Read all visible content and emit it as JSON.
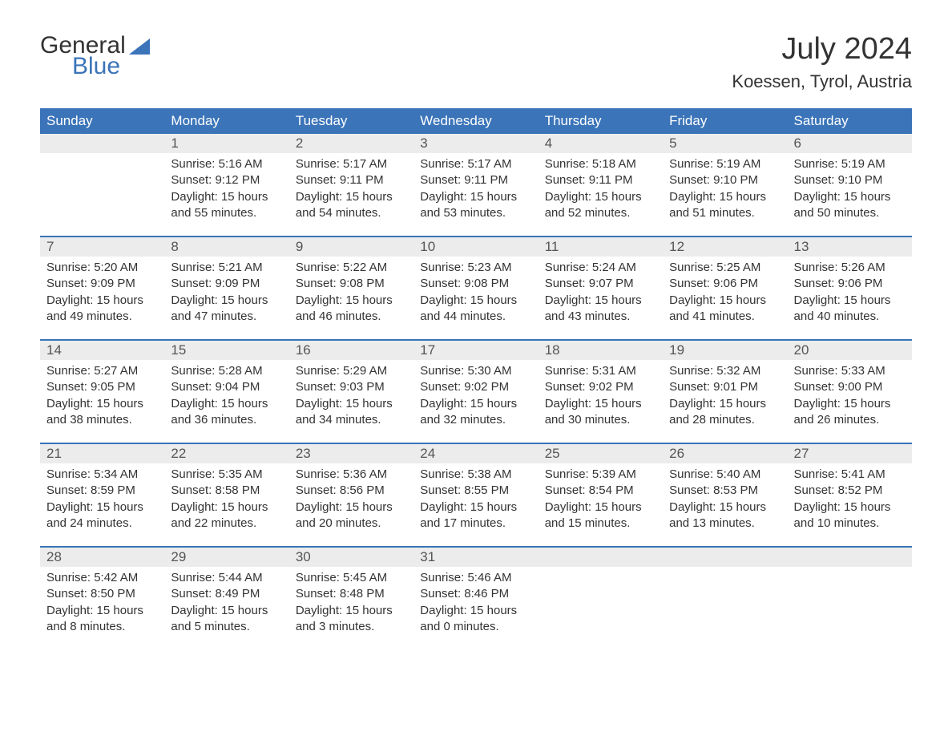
{
  "logo": {
    "text_general": "General",
    "text_blue": "Blue",
    "triangle_color": "#3b74b9"
  },
  "header": {
    "title": "July 2024",
    "subtitle": "Koessen, Tyrol, Austria"
  },
  "colors": {
    "header_bg": "#3b74b9",
    "header_text": "#ffffff",
    "daynum_bg": "#ececec",
    "text": "#333333",
    "week_border": "#3b74b9",
    "background": "#ffffff"
  },
  "fonts": {
    "family": "Arial, Helvetica, sans-serif",
    "title_size": 38,
    "subtitle_size": 22,
    "day_header_size": 17,
    "daynum_size": 17,
    "body_size": 15
  },
  "calendar": {
    "day_headers": [
      "Sunday",
      "Monday",
      "Tuesday",
      "Wednesday",
      "Thursday",
      "Friday",
      "Saturday"
    ],
    "weeks": [
      [
        {
          "num": "",
          "sunrise": "",
          "sunset": "",
          "daylight": ""
        },
        {
          "num": "1",
          "sunrise": "Sunrise: 5:16 AM",
          "sunset": "Sunset: 9:12 PM",
          "daylight": "Daylight: 15 hours and 55 minutes."
        },
        {
          "num": "2",
          "sunrise": "Sunrise: 5:17 AM",
          "sunset": "Sunset: 9:11 PM",
          "daylight": "Daylight: 15 hours and 54 minutes."
        },
        {
          "num": "3",
          "sunrise": "Sunrise: 5:17 AM",
          "sunset": "Sunset: 9:11 PM",
          "daylight": "Daylight: 15 hours and 53 minutes."
        },
        {
          "num": "4",
          "sunrise": "Sunrise: 5:18 AM",
          "sunset": "Sunset: 9:11 PM",
          "daylight": "Daylight: 15 hours and 52 minutes."
        },
        {
          "num": "5",
          "sunrise": "Sunrise: 5:19 AM",
          "sunset": "Sunset: 9:10 PM",
          "daylight": "Daylight: 15 hours and 51 minutes."
        },
        {
          "num": "6",
          "sunrise": "Sunrise: 5:19 AM",
          "sunset": "Sunset: 9:10 PM",
          "daylight": "Daylight: 15 hours and 50 minutes."
        }
      ],
      [
        {
          "num": "7",
          "sunrise": "Sunrise: 5:20 AM",
          "sunset": "Sunset: 9:09 PM",
          "daylight": "Daylight: 15 hours and 49 minutes."
        },
        {
          "num": "8",
          "sunrise": "Sunrise: 5:21 AM",
          "sunset": "Sunset: 9:09 PM",
          "daylight": "Daylight: 15 hours and 47 minutes."
        },
        {
          "num": "9",
          "sunrise": "Sunrise: 5:22 AM",
          "sunset": "Sunset: 9:08 PM",
          "daylight": "Daylight: 15 hours and 46 minutes."
        },
        {
          "num": "10",
          "sunrise": "Sunrise: 5:23 AM",
          "sunset": "Sunset: 9:08 PM",
          "daylight": "Daylight: 15 hours and 44 minutes."
        },
        {
          "num": "11",
          "sunrise": "Sunrise: 5:24 AM",
          "sunset": "Sunset: 9:07 PM",
          "daylight": "Daylight: 15 hours and 43 minutes."
        },
        {
          "num": "12",
          "sunrise": "Sunrise: 5:25 AM",
          "sunset": "Sunset: 9:06 PM",
          "daylight": "Daylight: 15 hours and 41 minutes."
        },
        {
          "num": "13",
          "sunrise": "Sunrise: 5:26 AM",
          "sunset": "Sunset: 9:06 PM",
          "daylight": "Daylight: 15 hours and 40 minutes."
        }
      ],
      [
        {
          "num": "14",
          "sunrise": "Sunrise: 5:27 AM",
          "sunset": "Sunset: 9:05 PM",
          "daylight": "Daylight: 15 hours and 38 minutes."
        },
        {
          "num": "15",
          "sunrise": "Sunrise: 5:28 AM",
          "sunset": "Sunset: 9:04 PM",
          "daylight": "Daylight: 15 hours and 36 minutes."
        },
        {
          "num": "16",
          "sunrise": "Sunrise: 5:29 AM",
          "sunset": "Sunset: 9:03 PM",
          "daylight": "Daylight: 15 hours and 34 minutes."
        },
        {
          "num": "17",
          "sunrise": "Sunrise: 5:30 AM",
          "sunset": "Sunset: 9:02 PM",
          "daylight": "Daylight: 15 hours and 32 minutes."
        },
        {
          "num": "18",
          "sunrise": "Sunrise: 5:31 AM",
          "sunset": "Sunset: 9:02 PM",
          "daylight": "Daylight: 15 hours and 30 minutes."
        },
        {
          "num": "19",
          "sunrise": "Sunrise: 5:32 AM",
          "sunset": "Sunset: 9:01 PM",
          "daylight": "Daylight: 15 hours and 28 minutes."
        },
        {
          "num": "20",
          "sunrise": "Sunrise: 5:33 AM",
          "sunset": "Sunset: 9:00 PM",
          "daylight": "Daylight: 15 hours and 26 minutes."
        }
      ],
      [
        {
          "num": "21",
          "sunrise": "Sunrise: 5:34 AM",
          "sunset": "Sunset: 8:59 PM",
          "daylight": "Daylight: 15 hours and 24 minutes."
        },
        {
          "num": "22",
          "sunrise": "Sunrise: 5:35 AM",
          "sunset": "Sunset: 8:58 PM",
          "daylight": "Daylight: 15 hours and 22 minutes."
        },
        {
          "num": "23",
          "sunrise": "Sunrise: 5:36 AM",
          "sunset": "Sunset: 8:56 PM",
          "daylight": "Daylight: 15 hours and 20 minutes."
        },
        {
          "num": "24",
          "sunrise": "Sunrise: 5:38 AM",
          "sunset": "Sunset: 8:55 PM",
          "daylight": "Daylight: 15 hours and 17 minutes."
        },
        {
          "num": "25",
          "sunrise": "Sunrise: 5:39 AM",
          "sunset": "Sunset: 8:54 PM",
          "daylight": "Daylight: 15 hours and 15 minutes."
        },
        {
          "num": "26",
          "sunrise": "Sunrise: 5:40 AM",
          "sunset": "Sunset: 8:53 PM",
          "daylight": "Daylight: 15 hours and 13 minutes."
        },
        {
          "num": "27",
          "sunrise": "Sunrise: 5:41 AM",
          "sunset": "Sunset: 8:52 PM",
          "daylight": "Daylight: 15 hours and 10 minutes."
        }
      ],
      [
        {
          "num": "28",
          "sunrise": "Sunrise: 5:42 AM",
          "sunset": "Sunset: 8:50 PM",
          "daylight": "Daylight: 15 hours and 8 minutes."
        },
        {
          "num": "29",
          "sunrise": "Sunrise: 5:44 AM",
          "sunset": "Sunset: 8:49 PM",
          "daylight": "Daylight: 15 hours and 5 minutes."
        },
        {
          "num": "30",
          "sunrise": "Sunrise: 5:45 AM",
          "sunset": "Sunset: 8:48 PM",
          "daylight": "Daylight: 15 hours and 3 minutes."
        },
        {
          "num": "31",
          "sunrise": "Sunrise: 5:46 AM",
          "sunset": "Sunset: 8:46 PM",
          "daylight": "Daylight: 15 hours and 0 minutes."
        },
        {
          "num": "",
          "sunrise": "",
          "sunset": "",
          "daylight": ""
        },
        {
          "num": "",
          "sunrise": "",
          "sunset": "",
          "daylight": ""
        },
        {
          "num": "",
          "sunrise": "",
          "sunset": "",
          "daylight": ""
        }
      ]
    ]
  }
}
